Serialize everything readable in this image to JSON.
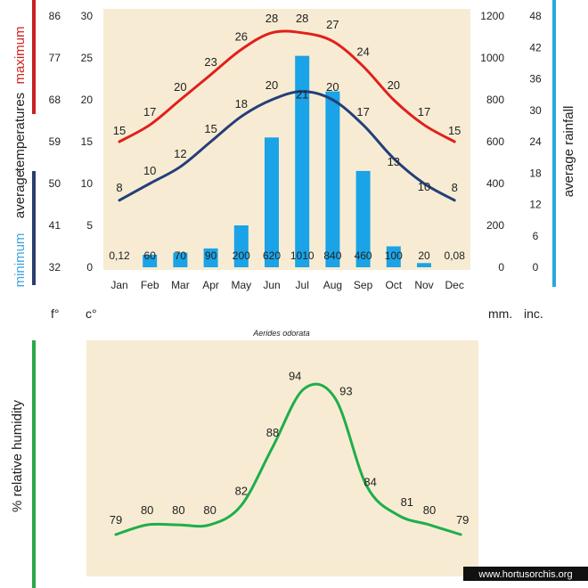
{
  "colors": {
    "parchment": "#f7ecd3",
    "max": "#e0201c",
    "min": "#233f7a",
    "rain": "#1aa3e6",
    "humidity": "#1fae4b",
    "bar_red": "#c9201f",
    "bar_navy": "#2a3d6e",
    "bar_cyan": "#26a9e0",
    "bar_green": "#29a847",
    "text": "#222222",
    "legend_minimum": "#3ea3dc",
    "legend_maximum": "#d02020"
  },
  "labels": {
    "maximum": "maximum",
    "temperatures": "temperatures",
    "average": "average",
    "minimum": "minimum",
    "average_rainfall": "average rainfall",
    "relative_humidity": "%  relative humidity",
    "unit_f": "f°",
    "unit_c": "c°",
    "unit_mm": "mm.",
    "unit_inc": "inc.",
    "species": "Aerides odorata",
    "watermark": "www.hortusorchis.org"
  },
  "chart_data": [
    {
      "type": "line",
      "title": "",
      "categories": [
        "Jan",
        "Feb",
        "Mar",
        "Apr",
        "May",
        "Jun",
        "Jul",
        "Aug",
        "Sep",
        "Oct",
        "Nov",
        "Dec"
      ],
      "series": [
        {
          "name": "maximum",
          "values": [
            15,
            17,
            20,
            23,
            26,
            28,
            28,
            27,
            24,
            20,
            17,
            15
          ]
        },
        {
          "name": "minimum",
          "values": [
            8,
            10,
            12,
            15,
            18,
            20,
            21,
            20,
            17,
            13,
            10,
            8
          ]
        }
      ],
      "bars": {
        "name": "average rainfall",
        "values": [
          0.12,
          60,
          70,
          90,
          200,
          620,
          1010,
          840,
          460,
          100,
          20,
          0.08
        ],
        "labels": [
          "0,12",
          "60",
          "70",
          "90",
          "200",
          "620",
          "1010",
          "840",
          "460",
          "100",
          "20",
          "0,08"
        ]
      },
      "axes": {
        "celsius": {
          "range": [
            0,
            30
          ],
          "ticks": [
            "0",
            "5",
            "10",
            "15",
            "20",
            "25",
            "30"
          ]
        },
        "fahrenheit": {
          "range": [
            32,
            86
          ],
          "ticks": [
            "32",
            "41",
            "50",
            "59",
            "68",
            "77",
            "86"
          ]
        },
        "mm": {
          "range": [
            0,
            1200
          ],
          "ticks": [
            "0",
            "200",
            "400",
            "600",
            "800",
            "1000",
            "1200"
          ]
        },
        "inches": {
          "range": [
            0,
            48
          ],
          "ticks": [
            "0",
            "6",
            "12",
            "18",
            "24",
            "30",
            "36",
            "42",
            "48"
          ]
        }
      }
    },
    {
      "type": "line",
      "title": "Aerides odorata",
      "ylabel": "% relative humidity",
      "categories": [
        "Jan",
        "Feb",
        "Mar",
        "Apr",
        "May",
        "Jun",
        "Jul",
        "Aug",
        "Sep",
        "Oct",
        "Nov",
        "Dec"
      ],
      "series": [
        {
          "name": "relative humidity",
          "values": [
            79,
            80,
            80,
            80,
            82,
            88,
            94,
            93,
            84,
            81,
            80,
            79
          ]
        }
      ]
    }
  ]
}
